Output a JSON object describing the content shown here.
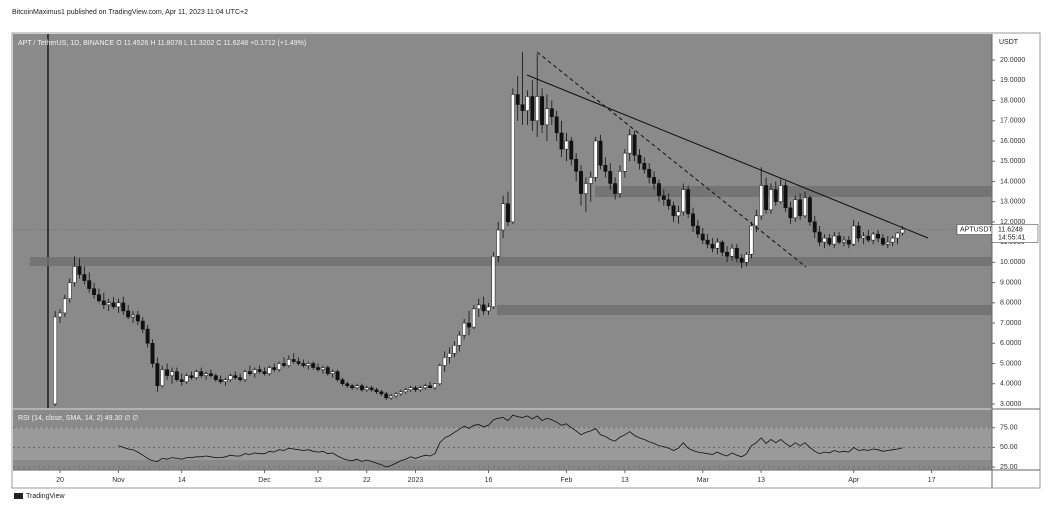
{
  "header": "BitcoinMaximus1 published on TradingView.com, Apr 11, 2023 11:04 UTC+2",
  "footer": "TradingView",
  "chart_data": {
    "type": "candlestick",
    "legend": {
      "symbol": "APT / TetherUS, 1D, BINANCE",
      "open": "O 11.4526",
      "high": "H 11.8078",
      "low": "L 11.3202",
      "close": "C 11.6248",
      "change": "+0.1712 (+1.49%)"
    },
    "axis_unit": "USDT",
    "price_tag": {
      "symbol": "APTUSDT",
      "price": "11.6248",
      "countdown": "14:55:41"
    },
    "x": [
      -1,
      0,
      1,
      2,
      3,
      4,
      5,
      6,
      7,
      8,
      9,
      10,
      11,
      12,
      13,
      14,
      15,
      16,
      17,
      18,
      19,
      20,
      21,
      22,
      23,
      24,
      25,
      26,
      27,
      28,
      29,
      30,
      31,
      32,
      33,
      34,
      35,
      36,
      37,
      38,
      39,
      40,
      41,
      42,
      43,
      44,
      45,
      46,
      47,
      48,
      49,
      50,
      51,
      52,
      53,
      54,
      55,
      56,
      57,
      58,
      59,
      60,
      61,
      62,
      63,
      64,
      65,
      66,
      67,
      68,
      69,
      70,
      71,
      72,
      73,
      74,
      75,
      76,
      77,
      78,
      79,
      80,
      81,
      82,
      83,
      84,
      85,
      86,
      87,
      88,
      89,
      90,
      91,
      92,
      93,
      94,
      95,
      96,
      97,
      98,
      99,
      100,
      101,
      102,
      103,
      104,
      105,
      106,
      107,
      108,
      109,
      110,
      111,
      112,
      113,
      114,
      115,
      116,
      117,
      118,
      119,
      120,
      121,
      122,
      123,
      124,
      125,
      126,
      127,
      128,
      129,
      130,
      131,
      132,
      133,
      134,
      135,
      136,
      137,
      138,
      139,
      140,
      141,
      142,
      143,
      144,
      145,
      146,
      147,
      148,
      149,
      150,
      151,
      152,
      153,
      154,
      155,
      156,
      157,
      158,
      159,
      160,
      161,
      162,
      163,
      164,
      165,
      166,
      167,
      168,
      169,
      170,
      171,
      172,
      173
    ],
    "ohlc": [
      [
        3.0,
        7.6,
        2.9,
        7.3
      ],
      [
        7.3,
        7.7,
        7.0,
        7.5
      ],
      [
        7.5,
        8.4,
        7.3,
        8.2
      ],
      [
        8.2,
        9.2,
        8.0,
        9.0
      ],
      [
        9.0,
        10.3,
        8.8,
        9.8
      ],
      [
        9.8,
        10.2,
        9.2,
        9.4
      ],
      [
        9.4,
        9.8,
        8.9,
        9.1
      ],
      [
        9.1,
        9.5,
        8.5,
        8.7
      ],
      [
        8.7,
        9.0,
        8.2,
        8.4
      ],
      [
        8.4,
        8.7,
        8.0,
        8.1
      ],
      [
        8.1,
        8.5,
        7.7,
        7.9
      ],
      [
        7.9,
        8.2,
        7.6,
        8.0
      ],
      [
        8.0,
        8.3,
        7.7,
        7.8
      ],
      [
        7.8,
        8.2,
        7.5,
        8.0
      ],
      [
        8.0,
        8.3,
        7.4,
        7.6
      ],
      [
        7.6,
        7.9,
        7.2,
        7.3
      ],
      [
        7.3,
        7.6,
        7.0,
        7.4
      ],
      [
        7.4,
        7.6,
        6.9,
        7.1
      ],
      [
        7.1,
        7.3,
        6.5,
        6.7
      ],
      [
        6.7,
        6.9,
        5.8,
        6.0
      ],
      [
        6.0,
        6.2,
        4.8,
        5.0
      ],
      [
        5.0,
        5.3,
        3.6,
        3.9
      ],
      [
        3.9,
        4.9,
        3.8,
        4.7
      ],
      [
        4.7,
        5.0,
        4.2,
        4.4
      ],
      [
        4.4,
        4.8,
        4.0,
        4.6
      ],
      [
        4.6,
        4.8,
        4.1,
        4.2
      ],
      [
        4.2,
        4.5,
        3.9,
        4.1
      ],
      [
        4.1,
        4.5,
        4.0,
        4.4
      ],
      [
        4.4,
        4.6,
        4.2,
        4.3
      ],
      [
        4.3,
        4.7,
        4.2,
        4.6
      ],
      [
        4.6,
        4.8,
        4.3,
        4.4
      ],
      [
        4.4,
        4.6,
        4.2,
        4.5
      ],
      [
        4.5,
        4.7,
        4.3,
        4.4
      ],
      [
        4.4,
        4.5,
        4.1,
        4.2
      ],
      [
        4.2,
        4.4,
        4.0,
        4.1
      ],
      [
        4.1,
        4.3,
        3.9,
        4.2
      ],
      [
        4.2,
        4.5,
        4.1,
        4.4
      ],
      [
        4.4,
        4.6,
        4.2,
        4.3
      ],
      [
        4.3,
        4.5,
        4.1,
        4.2
      ],
      [
        4.2,
        4.7,
        4.1,
        4.6
      ],
      [
        4.6,
        4.9,
        4.4,
        4.5
      ],
      [
        4.5,
        4.8,
        4.3,
        4.7
      ],
      [
        4.7,
        4.9,
        4.5,
        4.6
      ],
      [
        4.6,
        4.8,
        4.4,
        4.5
      ],
      [
        4.5,
        4.9,
        4.4,
        4.8
      ],
      [
        4.8,
        5.0,
        4.6,
        4.7
      ],
      [
        4.7,
        5.1,
        4.6,
        5.0
      ],
      [
        5.0,
        5.3,
        4.8,
        4.9
      ],
      [
        4.9,
        5.4,
        4.8,
        5.2
      ],
      [
        5.2,
        5.5,
        5.0,
        5.1
      ],
      [
        5.1,
        5.3,
        4.9,
        5.0
      ],
      [
        5.0,
        5.2,
        4.8,
        4.9
      ],
      [
        4.9,
        5.1,
        4.7,
        5.0
      ],
      [
        5.0,
        5.1,
        4.7,
        4.8
      ],
      [
        4.8,
        5.0,
        4.6,
        4.7
      ],
      [
        4.7,
        4.9,
        4.5,
        4.8
      ],
      [
        4.8,
        4.9,
        4.4,
        4.5
      ],
      [
        4.5,
        4.7,
        4.3,
        4.6
      ],
      [
        4.6,
        4.7,
        4.1,
        4.2
      ],
      [
        4.2,
        4.3,
        3.9,
        4.0
      ],
      [
        4.0,
        4.1,
        3.8,
        3.9
      ],
      [
        3.9,
        4.0,
        3.7,
        3.8
      ],
      [
        3.8,
        4.0,
        3.7,
        3.9
      ],
      [
        3.9,
        4.0,
        3.6,
        3.7
      ],
      [
        3.7,
        3.9,
        3.6,
        3.8
      ],
      [
        3.8,
        3.9,
        3.6,
        3.7
      ],
      [
        3.7,
        3.8,
        3.5,
        3.6
      ],
      [
        3.6,
        3.7,
        3.4,
        3.5
      ],
      [
        3.5,
        3.6,
        3.2,
        3.3
      ],
      [
        3.3,
        3.5,
        3.2,
        3.4
      ],
      [
        3.4,
        3.6,
        3.3,
        3.5
      ],
      [
        3.5,
        3.7,
        3.4,
        3.6
      ],
      [
        3.6,
        3.8,
        3.5,
        3.7
      ],
      [
        3.7,
        3.9,
        3.6,
        3.8
      ],
      [
        3.8,
        3.9,
        3.6,
        3.7
      ],
      [
        3.7,
        3.9,
        3.6,
        3.8
      ],
      [
        3.8,
        4.0,
        3.7,
        3.9
      ],
      [
        3.9,
        4.1,
        3.8,
        3.8
      ],
      [
        3.8,
        4.0,
        3.7,
        4.0
      ],
      [
        4.0,
        5.0,
        3.9,
        4.9
      ],
      [
        4.9,
        5.6,
        4.6,
        5.3
      ],
      [
        5.3,
        5.8,
        5.0,
        5.5
      ],
      [
        5.5,
        6.1,
        5.3,
        5.9
      ],
      [
        5.9,
        6.6,
        5.6,
        6.4
      ],
      [
        6.4,
        7.2,
        6.2,
        7.0
      ],
      [
        7.0,
        7.6,
        6.4,
        6.8
      ],
      [
        6.8,
        7.9,
        6.7,
        7.7
      ],
      [
        7.7,
        8.2,
        7.3,
        7.9
      ],
      [
        7.9,
        8.3,
        7.4,
        7.6
      ],
      [
        7.6,
        8.0,
        7.4,
        7.8
      ],
      [
        7.8,
        10.5,
        7.7,
        10.3
      ],
      [
        10.3,
        12.0,
        10.0,
        11.6
      ],
      [
        11.6,
        13.3,
        11.2,
        12.9
      ],
      [
        12.9,
        13.5,
        11.8,
        12.0
      ],
      [
        12.0,
        18.6,
        11.9,
        18.3
      ],
      [
        18.3,
        19.2,
        17.0,
        17.8
      ],
      [
        17.8,
        20.4,
        16.8,
        17.5
      ],
      [
        17.5,
        18.5,
        16.8,
        18.2
      ],
      [
        18.2,
        19.0,
        16.5,
        17.0
      ],
      [
        17.0,
        20.3,
        16.2,
        18.2
      ],
      [
        18.2,
        18.6,
        16.4,
        16.8
      ],
      [
        16.8,
        18.3,
        16.0,
        17.6
      ],
      [
        17.6,
        18.0,
        16.8,
        17.2
      ],
      [
        17.2,
        17.5,
        16.0,
        16.4
      ],
      [
        16.4,
        17.0,
        15.2,
        15.6
      ],
      [
        15.6,
        16.4,
        15.0,
        16.0
      ],
      [
        16.0,
        16.2,
        14.8,
        15.1
      ],
      [
        15.1,
        15.4,
        14.0,
        14.5
      ],
      [
        14.5,
        14.8,
        12.8,
        13.4
      ],
      [
        13.4,
        14.2,
        12.5,
        13.9
      ],
      [
        13.9,
        14.5,
        13.0,
        14.2
      ],
      [
        14.2,
        16.2,
        14.0,
        16.0
      ],
      [
        16.0,
        16.3,
        14.6,
        14.8
      ],
      [
        14.8,
        15.2,
        14.2,
        14.5
      ],
      [
        14.5,
        14.9,
        13.6,
        13.9
      ],
      [
        13.9,
        14.2,
        13.1,
        13.4
      ],
      [
        13.4,
        14.8,
        13.2,
        14.5
      ],
      [
        14.5,
        15.6,
        14.2,
        15.4
      ],
      [
        15.4,
        16.6,
        15.0,
        16.3
      ],
      [
        16.3,
        16.5,
        15.0,
        15.3
      ],
      [
        15.3,
        15.6,
        14.6,
        14.9
      ],
      [
        14.9,
        15.2,
        14.4,
        14.6
      ],
      [
        14.6,
        14.9,
        13.9,
        14.2
      ],
      [
        14.2,
        14.5,
        13.6,
        13.9
      ],
      [
        13.9,
        14.1,
        13.0,
        13.3
      ],
      [
        13.3,
        13.6,
        12.8,
        13.1
      ],
      [
        13.1,
        13.4,
        12.6,
        12.8
      ],
      [
        12.8,
        13.0,
        12.0,
        12.3
      ],
      [
        12.3,
        12.8,
        11.9,
        12.5
      ],
      [
        12.5,
        13.9,
        12.3,
        13.6
      ],
      [
        13.6,
        13.8,
        12.2,
        12.4
      ],
      [
        12.4,
        12.7,
        11.5,
        11.8
      ],
      [
        11.8,
        12.1,
        11.2,
        11.4
      ],
      [
        11.4,
        11.7,
        10.9,
        11.1
      ],
      [
        11.1,
        11.4,
        10.7,
        10.9
      ],
      [
        10.9,
        11.2,
        10.5,
        10.7
      ],
      [
        10.7,
        11.2,
        10.4,
        11.0
      ],
      [
        11.0,
        11.1,
        10.3,
        10.5
      ],
      [
        10.5,
        10.8,
        10.0,
        10.3
      ],
      [
        10.3,
        10.9,
        10.1,
        10.7
      ],
      [
        10.7,
        10.9,
        10.0,
        10.2
      ],
      [
        10.2,
        10.4,
        9.7,
        10.0
      ],
      [
        10.0,
        10.5,
        9.8,
        10.4
      ],
      [
        10.4,
        12.0,
        10.2,
        11.8
      ],
      [
        11.8,
        12.6,
        11.5,
        12.3
      ],
      [
        12.3,
        14.7,
        12.1,
        13.8
      ],
      [
        13.8,
        14.2,
        12.4,
        12.6
      ],
      [
        12.6,
        13.9,
        12.4,
        13.6
      ],
      [
        13.6,
        14.0,
        12.8,
        13.0
      ],
      [
        13.0,
        14.1,
        12.9,
        13.8
      ],
      [
        13.8,
        14.0,
        12.5,
        12.7
      ],
      [
        12.7,
        13.0,
        11.9,
        12.2
      ],
      [
        12.2,
        13.3,
        12.0,
        13.1
      ],
      [
        13.1,
        13.4,
        12.1,
        12.3
      ],
      [
        12.3,
        13.5,
        12.2,
        13.2
      ],
      [
        13.2,
        13.3,
        11.8,
        12.0
      ],
      [
        12.0,
        12.3,
        11.2,
        11.5
      ],
      [
        11.5,
        11.8,
        10.8,
        11.0
      ],
      [
        11.0,
        11.4,
        10.7,
        11.2
      ],
      [
        11.2,
        11.4,
        10.8,
        10.9
      ],
      [
        10.9,
        11.5,
        10.7,
        11.3
      ],
      [
        11.3,
        11.5,
        10.9,
        11.0
      ],
      [
        11.0,
        11.3,
        10.8,
        11.1
      ],
      [
        11.1,
        11.3,
        10.7,
        10.9
      ],
      [
        10.9,
        12.1,
        10.8,
        11.8
      ],
      [
        11.8,
        12.0,
        11.0,
        11.2
      ],
      [
        11.2,
        11.5,
        10.9,
        11.3
      ],
      [
        11.3,
        11.6,
        11.0,
        11.1
      ],
      [
        11.1,
        11.5,
        10.9,
        11.4
      ],
      [
        11.4,
        11.6,
        11.0,
        11.2
      ],
      [
        11.2,
        11.4,
        10.8,
        10.9
      ],
      [
        10.9,
        11.3,
        10.7,
        11.0
      ],
      [
        11.0,
        11.3,
        10.8,
        11.2
      ],
      [
        11.2,
        11.5,
        10.9,
        11.45
      ],
      [
        11.4526,
        11.8078,
        11.3202,
        11.6248
      ]
    ],
    "up_color": "#ffffff",
    "down_color": "#111111",
    "xlim": [
      -9.65,
      191.4
    ],
    "xticks": [
      {
        "value": 0,
        "label": "20"
      },
      {
        "value": 12,
        "label": "Nov"
      },
      {
        "value": 25,
        "label": "14"
      },
      {
        "value": 42,
        "label": "Dec"
      },
      {
        "value": 53,
        "label": "12"
      },
      {
        "value": 63,
        "label": "22"
      },
      {
        "value": 73,
        "label": "2023"
      },
      {
        "value": 88,
        "label": "16"
      },
      {
        "value": 104,
        "label": "Feb"
      },
      {
        "value": 116,
        "label": "13"
      },
      {
        "value": 132,
        "label": "Mar"
      },
      {
        "value": 144,
        "label": "13"
      },
      {
        "value": 163,
        "label": "Apr"
      },
      {
        "value": 179,
        "label": "17"
      }
    ],
    "ylim": [
      2.8,
      21.29
    ],
    "yticks": [
      {
        "value": 3,
        "label": "3.0000"
      },
      {
        "value": 4,
        "label": "4.0000"
      },
      {
        "value": 5,
        "label": "5.0000"
      },
      {
        "value": 6,
        "label": "6.0000"
      },
      {
        "value": 7,
        "label": "7.0000"
      },
      {
        "value": 8,
        "label": "8.0000"
      },
      {
        "value": 9,
        "label": "9.0000"
      },
      {
        "value": 10,
        "label": "10.0000"
      },
      {
        "value": 11,
        "label": "11.0000"
      },
      {
        "value": 12,
        "label": "12.0000"
      },
      {
        "value": 13,
        "label": "13.0000"
      },
      {
        "value": 14,
        "label": "14.0000"
      },
      {
        "value": 15,
        "label": "15.0000"
      },
      {
        "value": 16,
        "label": "16.0000"
      },
      {
        "value": 17,
        "label": "17.0000"
      },
      {
        "value": 18,
        "label": "18.0000"
      },
      {
        "value": 19,
        "label": "19.0000"
      },
      {
        "value": 20,
        "label": "20.0000"
      }
    ],
    "rsi": {
      "name": "RSI (14, close, SMA, 14, 2)",
      "value_label": "49.30",
      "extras": "∅ ∅",
      "color": "#111111",
      "ylim": [
        21.25,
        97.5
      ],
      "yticks": [
        {
          "value": 25,
          "label": "25.00"
        },
        {
          "value": 50,
          "label": "50.00"
        },
        {
          "value": 75,
          "label": "75.00"
        }
      ],
      "values": [
        null,
        null,
        null,
        null,
        null,
        null,
        null,
        null,
        null,
        null,
        null,
        null,
        null,
        52,
        50,
        48,
        47,
        44,
        40,
        36,
        33,
        32,
        36,
        35,
        37,
        36,
        35,
        37,
        37,
        38,
        38,
        39,
        38,
        37,
        37,
        38,
        40,
        39,
        39,
        42,
        41,
        43,
        42,
        42,
        45,
        44,
        47,
        46,
        49,
        48,
        47,
        46,
        47,
        45,
        44,
        45,
        42,
        43,
        39,
        36,
        34,
        33,
        35,
        32,
        34,
        32,
        30,
        28,
        25,
        27,
        30,
        33,
        35,
        38,
        36,
        38,
        40,
        39,
        42,
        56,
        62,
        65,
        69,
        73,
        77,
        74,
        78,
        79,
        76,
        78,
        85,
        87,
        88,
        84,
        91,
        89,
        88,
        90,
        86,
        90,
        84,
        87,
        85,
        82,
        78,
        80,
        75,
        71,
        66,
        69,
        71,
        74,
        66,
        64,
        60,
        58,
        63,
        66,
        70,
        65,
        62,
        60,
        57,
        55,
        52,
        51,
        49,
        46,
        49,
        56,
        49,
        46,
        44,
        43,
        42,
        41,
        44,
        41,
        39,
        43,
        40,
        38,
        42,
        52,
        56,
        62,
        55,
        60,
        56,
        60,
        55,
        51,
        56,
        52,
        56,
        50,
        45,
        42,
        44,
        43,
        46,
        44,
        45,
        44,
        50,
        46,
        47,
        46,
        48,
        47,
        45,
        46,
        47,
        48,
        49.3
      ]
    }
  }
}
